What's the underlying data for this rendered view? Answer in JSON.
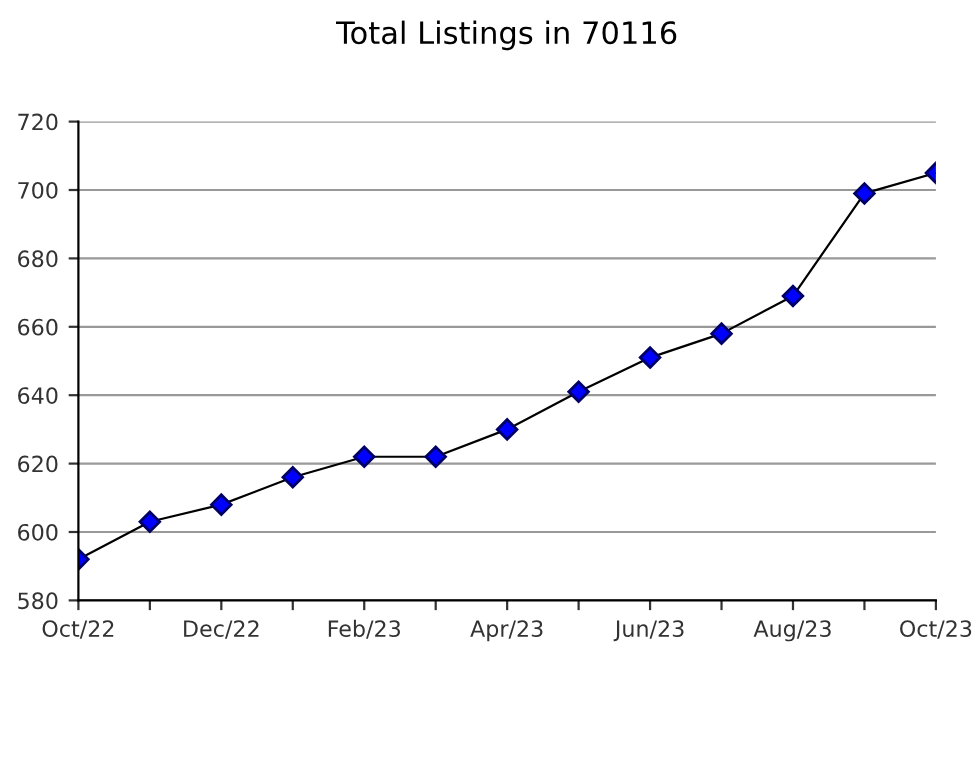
{
  "chart_data": {
    "type": "line",
    "title": "Total Listings in 70116",
    "categories": [
      "Oct/22",
      null,
      "Dec/22",
      null,
      "Feb/23",
      null,
      "Apr/23",
      null,
      "Jun/23",
      null,
      "Aug/23",
      null,
      "Oct/23"
    ],
    "series": [
      {
        "color": "#0000ff",
        "values": [
          592,
          603,
          608,
          616,
          622,
          622,
          630,
          641,
          651,
          658,
          669,
          699,
          705
        ]
      }
    ],
    "ylim": [
      580,
      720
    ],
    "yticks": [
      580,
      600,
      620,
      640,
      660,
      680,
      700,
      720
    ],
    "grid": "y",
    "marker": "diamond",
    "line_style": "solid"
  }
}
